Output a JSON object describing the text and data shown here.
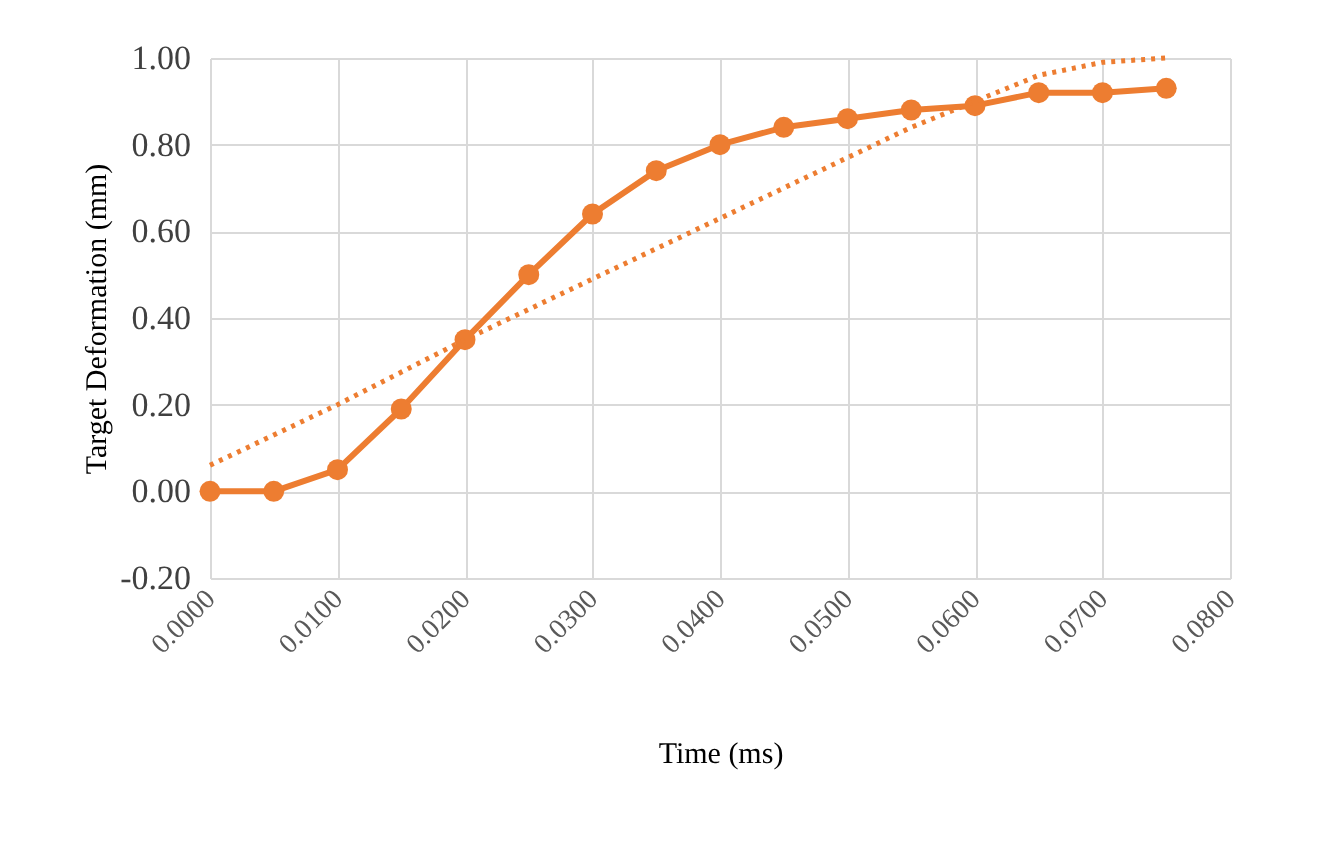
{
  "chart_data": {
    "type": "line",
    "xlabel": "Time (ms)",
    "ylabel": "Target Deformation (mm)",
    "xlim": [
      0,
      0.08
    ],
    "ylim": [
      -0.2,
      1.0
    ],
    "xticks": [
      {
        "value": 0,
        "label": "0.0000"
      },
      {
        "value": 0.01,
        "label": "0.0100"
      },
      {
        "value": 0.02,
        "label": "0.0200"
      },
      {
        "value": 0.03,
        "label": "0.0300"
      },
      {
        "value": 0.04,
        "label": "0.0400"
      },
      {
        "value": 0.05,
        "label": "0.0500"
      },
      {
        "value": 0.06,
        "label": "0.0600"
      },
      {
        "value": 0.07,
        "label": "0.0700"
      },
      {
        "value": 0.08,
        "label": "0.0800"
      }
    ],
    "yticks": [
      {
        "value": -0.2,
        "label": "-0.20"
      },
      {
        "value": 0,
        "label": "0.00"
      },
      {
        "value": 0.2,
        "label": "0.20"
      },
      {
        "value": 0.4,
        "label": "0.40"
      },
      {
        "value": 0.6,
        "label": "0.60"
      },
      {
        "value": 0.8,
        "label": "0.80"
      },
      {
        "value": 1.0,
        "label": "1.00"
      }
    ],
    "grid": true,
    "series": [
      {
        "color": "#ed7d31",
        "marker": "circle",
        "line_style": "solid",
        "x": [
          0,
          0.005,
          0.01,
          0.015,
          0.02,
          0.025,
          0.03,
          0.035,
          0.04,
          0.045,
          0.05,
          0.055,
          0.06,
          0.065,
          0.07,
          0.075
        ],
        "values": [
          0,
          0,
          0.05,
          0.19,
          0.35,
          0.5,
          0.64,
          0.74,
          0.8,
          0.84,
          0.86,
          0.88,
          0.89,
          0.92,
          0.92,
          0.93
        ]
      },
      {
        "type": "line",
        "color": "#ed7d31",
        "marker": "none",
        "line_style": "dotted",
        "x": [
          0,
          0.01,
          0.02,
          0.03,
          0.04,
          0.05,
          0.055,
          0.06,
          0.065,
          0.07,
          0.075
        ],
        "values": [
          0.06,
          0.2,
          0.35,
          0.49,
          0.63,
          0.77,
          0.84,
          0.9,
          0.96,
          0.99,
          1.0
        ]
      }
    ]
  }
}
